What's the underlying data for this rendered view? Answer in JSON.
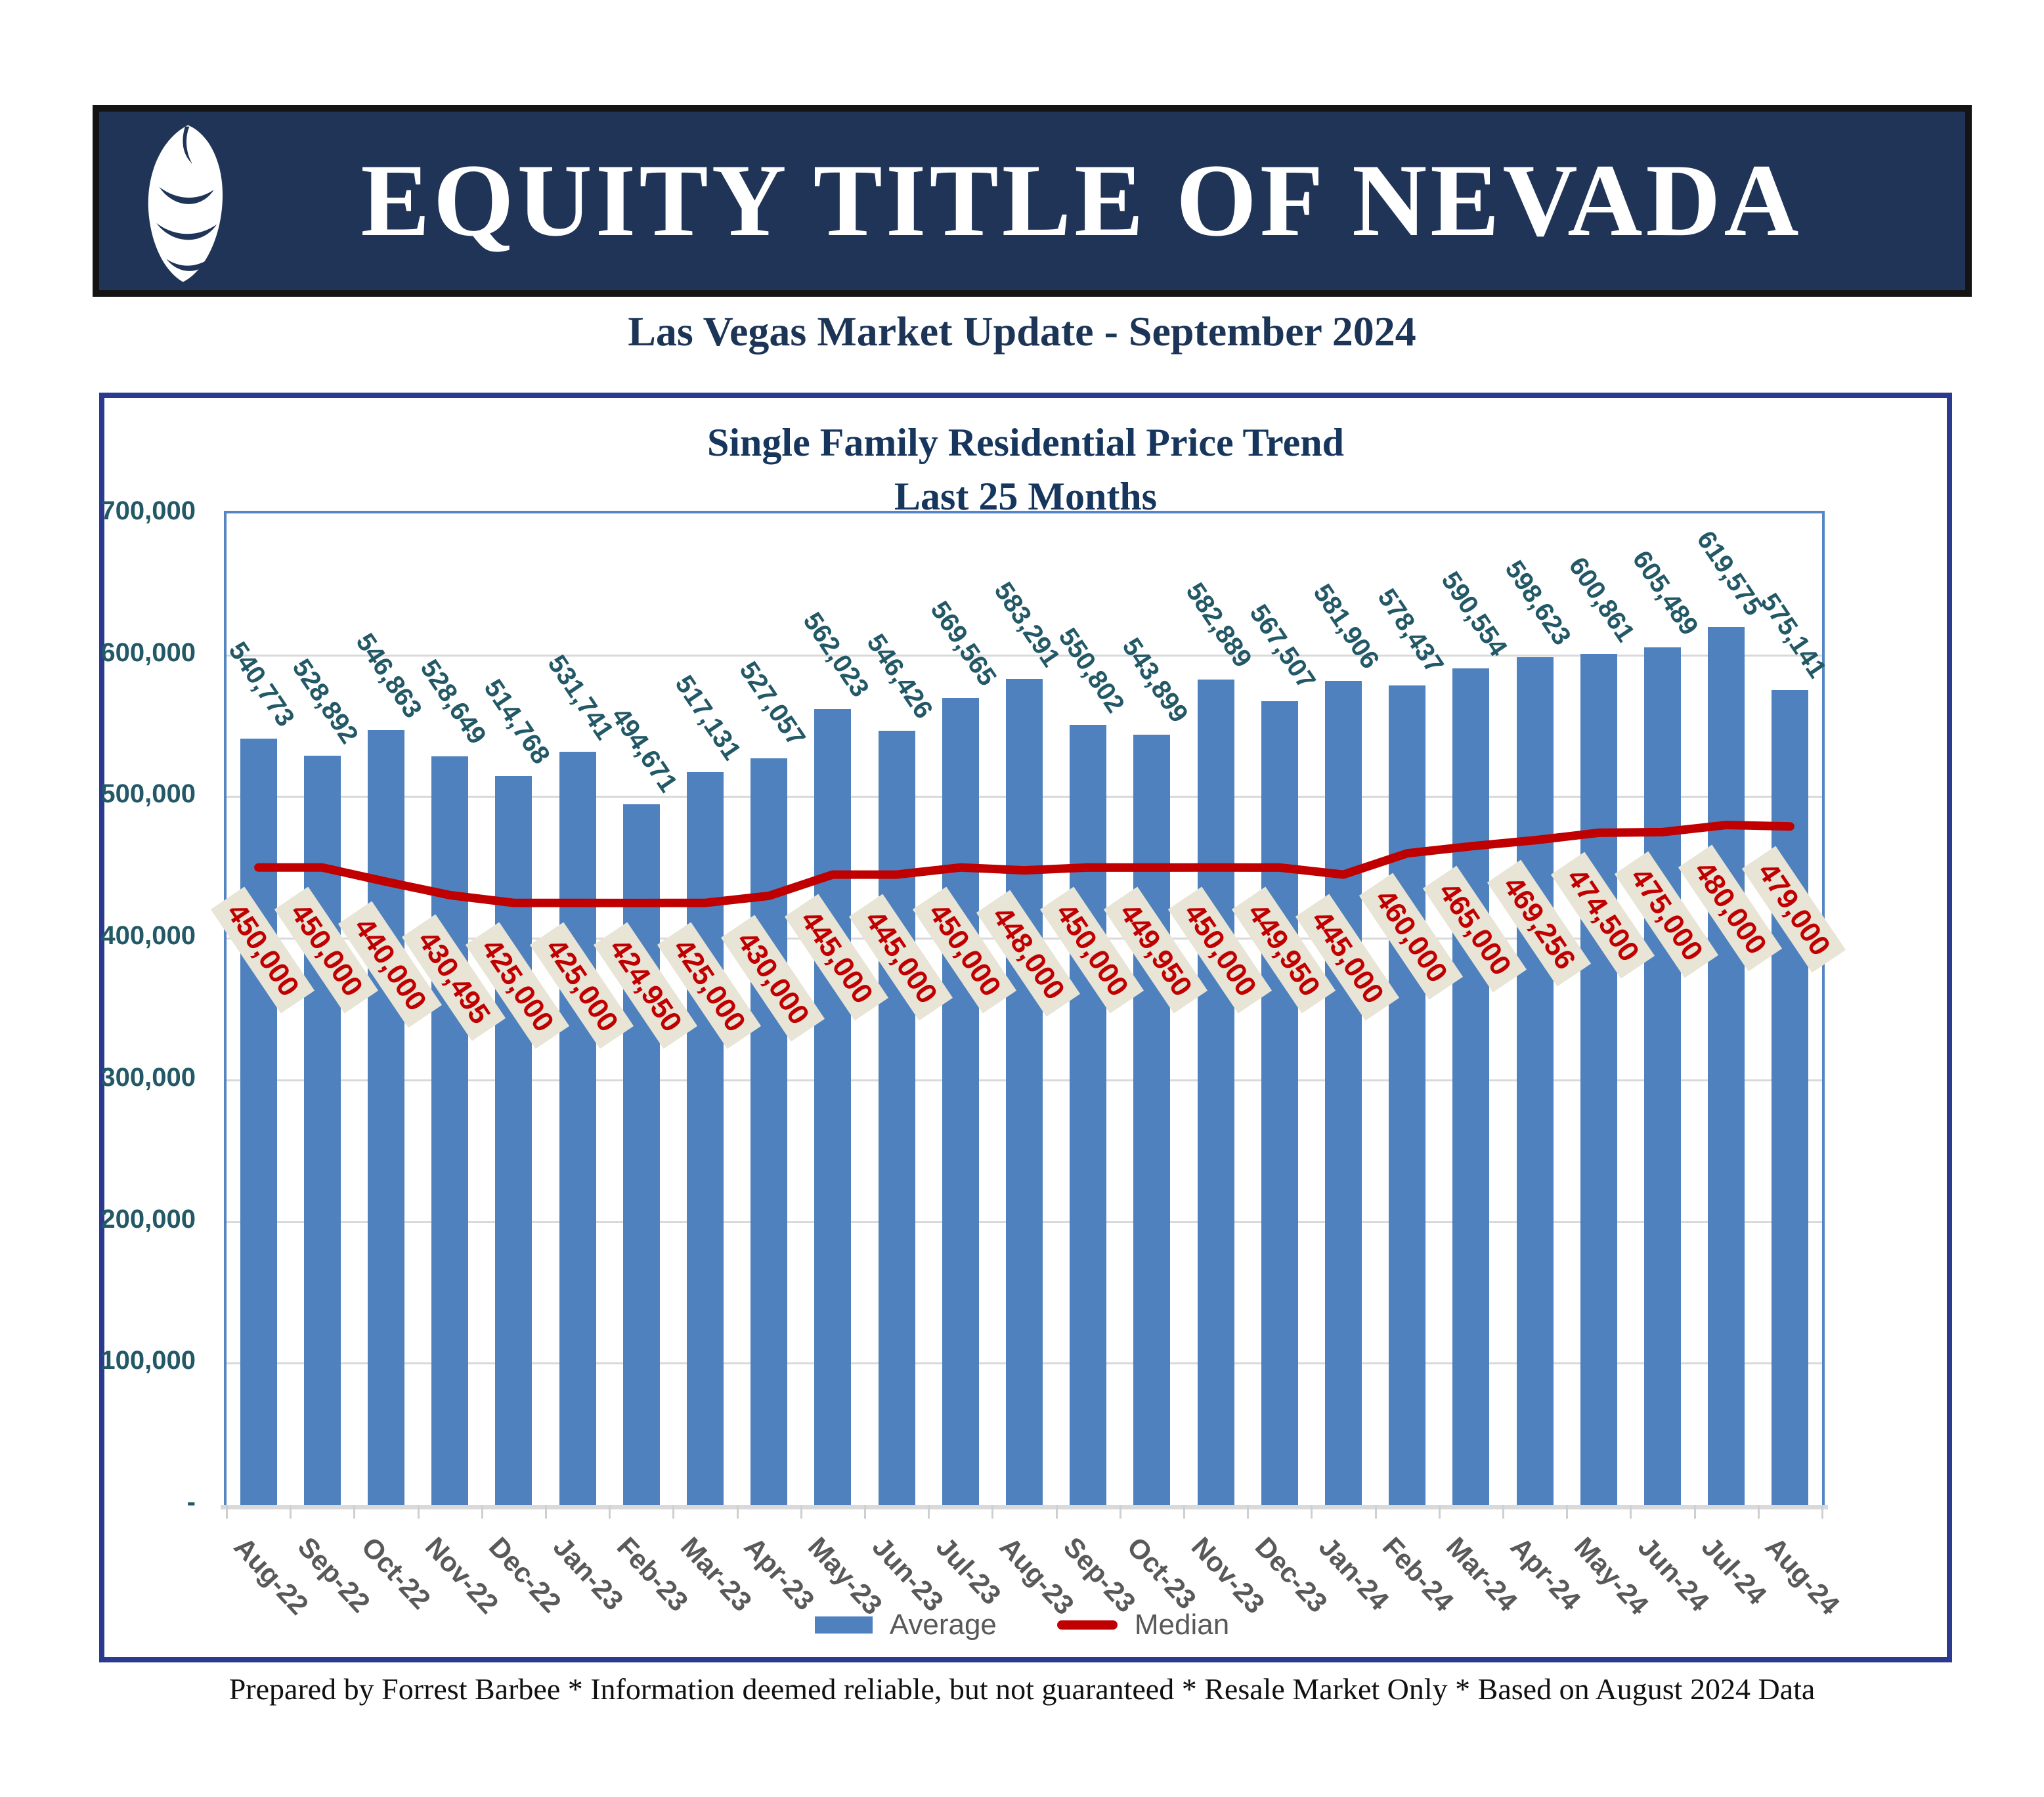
{
  "header": {
    "company": "EQUITY TITLE OF NEVADA",
    "subtitle": "Las Vegas Market Update - September 2024"
  },
  "chart_data": {
    "type": "bar",
    "title": "Single Family Residential Price Trend",
    "subtitle": "Last 25 Months",
    "categories": [
      "Aug-22",
      "Sep-22",
      "Oct-22",
      "Nov-22",
      "Dec-22",
      "Jan-23",
      "Feb-23",
      "Mar-23",
      "Apr-23",
      "May-23",
      "Jun-23",
      "Jul-23",
      "Aug-23",
      "Sep-23",
      "Oct-23",
      "Nov-23",
      "Dec-23",
      "Jan-24",
      "Feb-24",
      "Mar-24",
      "Apr-24",
      "May-24",
      "Jun-24",
      "Jul-24",
      "Aug-24"
    ],
    "series": [
      {
        "name": "Average",
        "type": "bar",
        "values": [
          540773,
          528892,
          546863,
          528649,
          514768,
          531741,
          494671,
          517131,
          527057,
          562023,
          546426,
          569565,
          583291,
          550802,
          543899,
          582889,
          567507,
          581906,
          578437,
          590554,
          598623,
          600861,
          605489,
          619575,
          575141
        ],
        "labels": [
          "540,773",
          "528,892",
          "546,863",
          "528,649",
          "514,768",
          "531,741",
          "494,671",
          "517,131",
          "527,057",
          "562,023",
          "546,426",
          "569,565",
          "583,291",
          "550,802",
          "543,899",
          "582,889",
          "567,507",
          "581,906",
          "578,437",
          "590,554",
          "598,623",
          "600,861",
          "605,489",
          "619,575",
          "575,141"
        ]
      },
      {
        "name": "Median",
        "type": "line",
        "values": [
          450000,
          450000,
          440000,
          430495,
          425000,
          425000,
          424950,
          425000,
          430000,
          445000,
          445000,
          450000,
          448000,
          450000,
          449950,
          450000,
          449950,
          445000,
          460000,
          465000,
          469256,
          474500,
          475000,
          480000,
          479000
        ],
        "labels": [
          "450,000",
          "450,000",
          "440,000",
          "430,495",
          "425,000",
          "425,000",
          "424,950",
          "425,000",
          "430,000",
          "445,000",
          "445,000",
          "450,000",
          "448,000",
          "450,000",
          "449,950",
          "450,000",
          "449,950",
          "445,000",
          "460,000",
          "465,000",
          "469,256",
          "474,500",
          "475,000",
          "480,000",
          "479,000"
        ]
      }
    ],
    "ylim": [
      0,
      700000
    ],
    "ytick_labels": [
      "700,000",
      "600,000",
      "500,000",
      "400,000",
      "300,000",
      "200,000",
      "100,000",
      "-"
    ],
    "legend": [
      "Average",
      "Median"
    ],
    "legend_position": "bottom",
    "grid": "horizontal"
  },
  "footer": {
    "text": "Prepared by Forrest Barbee * Information deemed reliable, but not guaranteed * Resale Market Only * Based on August 2024 Data"
  },
  "colors": {
    "bar": "#4E81BD",
    "median_line": "#C00000",
    "median_label_bg": "#E8E4D6",
    "median_label_text": "#C00000",
    "bar_label": "#235866",
    "y_axis_label": "#235866",
    "x_axis_label": "#595959",
    "grid": "#D9D9D9",
    "plot_border": "#5585C2",
    "chart_border": "#2B3A8F",
    "banner_bg": "#203457",
    "banner_text": "#FFFFFF",
    "title_text": "#17365D",
    "legend_text": "#595959",
    "footer_text": "#111111"
  }
}
